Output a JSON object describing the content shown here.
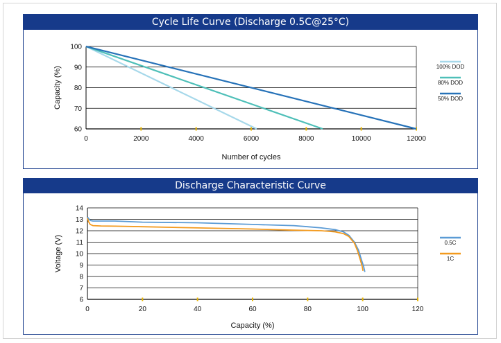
{
  "chart_data": [
    {
      "type": "line",
      "title": "Cycle Life Curve (Discharge 0.5C@25°C)",
      "xlabel": "Number of cycles",
      "ylabel": "Capacity (%)",
      "xlim": [
        0,
        12000
      ],
      "ylim": [
        60,
        100
      ],
      "xticks": [
        0,
        2000,
        4000,
        6000,
        8000,
        10000,
        12000
      ],
      "yticks": [
        60,
        70,
        80,
        90,
        100
      ],
      "grid": "horizontal",
      "legend_position": "right",
      "series": [
        {
          "name": "100% DOD",
          "color": "#a6d8ea",
          "x": [
            0,
            6200
          ],
          "y": [
            100,
            60
          ]
        },
        {
          "name": "80% DOD",
          "color": "#4ebfb8",
          "x": [
            0,
            8600
          ],
          "y": [
            100,
            60
          ]
        },
        {
          "name": "50% DOD",
          "color": "#2672b8",
          "x": [
            0,
            12000
          ],
          "y": [
            100,
            60
          ]
        }
      ]
    },
    {
      "type": "line",
      "title": "Discharge Characteristic Curve",
      "xlabel": "Capacity (%)",
      "ylabel": "Voltage (V)",
      "xlim": [
        0,
        120
      ],
      "ylim": [
        6,
        14
      ],
      "xticks": [
        0,
        20,
        40,
        60,
        80,
        100,
        120
      ],
      "yticks": [
        6,
        7,
        8,
        9,
        10,
        11,
        12,
        13,
        14
      ],
      "grid": "horizontal",
      "legend_position": "right",
      "series": [
        {
          "name": "0.5C",
          "color": "#5b9bd5",
          "x": [
            0,
            0.5,
            1,
            2,
            5,
            10,
            20,
            40,
            60,
            75,
            80,
            85,
            90,
            93,
            95,
            97,
            98.5,
            99.5,
            100.3,
            100.8
          ],
          "y": [
            13.2,
            13.05,
            12.9,
            12.85,
            12.85,
            12.85,
            12.75,
            12.7,
            12.55,
            12.45,
            12.35,
            12.25,
            12.1,
            11.9,
            11.6,
            11.0,
            10.3,
            9.5,
            8.9,
            8.4
          ]
        },
        {
          "name": "1C",
          "color": "#f39a1e",
          "x": [
            0,
            0.4,
            1,
            2,
            5,
            10,
            20,
            40,
            60,
            75,
            85,
            90,
            93,
            95,
            97,
            98.2,
            99.2,
            99.8,
            100.1
          ],
          "y": [
            13.1,
            12.8,
            12.55,
            12.45,
            12.42,
            12.4,
            12.35,
            12.25,
            12.15,
            12.05,
            12.0,
            11.9,
            11.75,
            11.5,
            10.9,
            10.2,
            9.4,
            8.9,
            8.5
          ]
        }
      ]
    }
  ]
}
